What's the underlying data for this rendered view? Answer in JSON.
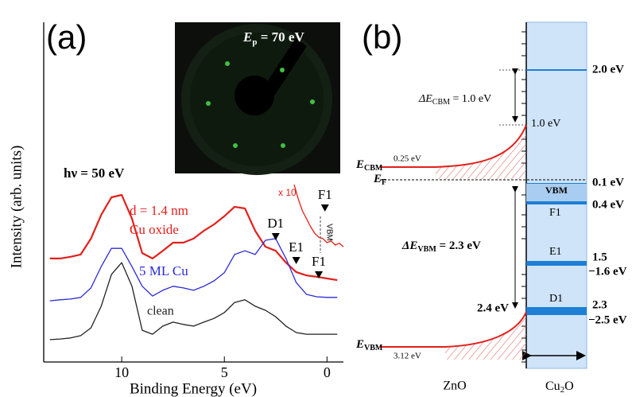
{
  "chart_data": {
    "type": "line",
    "panel_label": "(a)",
    "x_label": "Binding Energy (eV)",
    "y_label": "Intensity (arb. units)",
    "xlim": [
      13.8,
      -0.8
    ],
    "xticks": [
      10,
      5,
      0
    ],
    "ylim": [
      0,
      10
    ],
    "x": [
      13.5,
      13,
      12.5,
      12,
      11.5,
      11,
      10.5,
      10,
      9.5,
      9,
      8.5,
      8,
      7.5,
      7,
      6.5,
      6,
      5.5,
      5,
      4.5,
      4,
      3.5,
      3,
      2.5,
      2,
      1.5,
      1,
      0.5,
      0,
      -0.5
    ],
    "series": [
      {
        "name": "Cu oxide",
        "color": "#e3201b",
        "values": [
          3.06,
          3.06,
          3.11,
          3.18,
          3.65,
          4.35,
          4.87,
          4.94,
          4.24,
          3.22,
          3.06,
          3.29,
          3.53,
          3.53,
          3.65,
          3.88,
          4.07,
          4.31,
          4.59,
          4.54,
          3.88,
          3.41,
          3.29,
          2.94,
          2.66,
          2.56,
          2.52,
          2.47,
          2.42
        ]
      },
      {
        "name": "5 ML Cu",
        "color": "#2b2bd6",
        "values": [
          1.81,
          1.84,
          1.86,
          1.91,
          2.19,
          2.82,
          3.36,
          3.36,
          2.82,
          2.24,
          1.95,
          2.12,
          2.24,
          2.19,
          2.12,
          2.24,
          2.4,
          2.64,
          3.18,
          3.29,
          3.18,
          3.6,
          3.65,
          3.06,
          2.35,
          2.0,
          1.93,
          1.91,
          1.91
        ]
      },
      {
        "name": "clean",
        "color": "#222222",
        "values": [
          0.66,
          0.68,
          0.71,
          0.78,
          1.01,
          1.65,
          2.59,
          2.94,
          2.24,
          0.94,
          0.82,
          1.06,
          1.18,
          1.11,
          1.06,
          1.18,
          1.29,
          1.46,
          1.76,
          1.84,
          1.65,
          1.53,
          1.34,
          1.06,
          0.87,
          0.82,
          0.82,
          0.82,
          0.82
        ]
      },
      {
        "name": "x 10",
        "color": "#e3201b",
        "x": [
          1.6,
          1.4,
          1.2,
          1.0,
          0.8,
          0.6,
          0.4,
          0.2,
          0,
          -0.2,
          -0.4,
          -0.6,
          -0.8
        ],
        "values": [
          5.25,
          4.82,
          4.47,
          4.24,
          4.0,
          3.81,
          3.69,
          3.65,
          3.53,
          3.58,
          3.46,
          3.51,
          3.41
        ]
      }
    ],
    "oxide_thickness": "d = 1.4 nm",
    "photon_energy": "hν = 50 eV",
    "vbm_label": "VBM",
    "inset_energy": {
      "main": "E",
      "sub": "p",
      "rest": " = 70 eV"
    },
    "annotations": [
      {
        "text": "D1",
        "x": 2.5
      },
      {
        "text": "E1",
        "x": 1.5
      },
      {
        "text": "F1",
        "x": 0.4
      },
      {
        "text": "F1",
        "x": 0.1
      }
    ]
  },
  "band_diagram": {
    "panel_label": "(b)",
    "left_material": "ZnO",
    "right_material": {
      "main": "Cu",
      "sub": "2",
      "rest": "O"
    },
    "e_cbm": {
      "main": "E",
      "sub": "CBM"
    },
    "e_f": {
      "main": "E",
      "sub": "F"
    },
    "e_vbm": {
      "main": "E",
      "sub": "VBM"
    },
    "delta_cbm": {
      "main": "ΔE",
      "sub": "CBM",
      "rest": " = 1.0 eV"
    },
    "delta_vbm": {
      "main": "ΔE",
      "sub": "VBM",
      "rest": " = 2.3 eV"
    },
    "level_2_0": "2.0 eV",
    "level_1_0": "1.0 eV",
    "level_0_25": "0.25 eV",
    "level_0_1": "0.1 eV",
    "level_0_4": "0.4 eV",
    "level_1_5": "1.5",
    "level_1_6": "−1.6 eV",
    "level_2_3": "2.3",
    "level_2_5": "−2.5 eV",
    "level_2_4": "2.4 eV",
    "level_3_12": "3.12 eV",
    "band_vbm": "VBM",
    "band_f1": "F1",
    "band_e1": "E1",
    "band_d1": "D1"
  }
}
